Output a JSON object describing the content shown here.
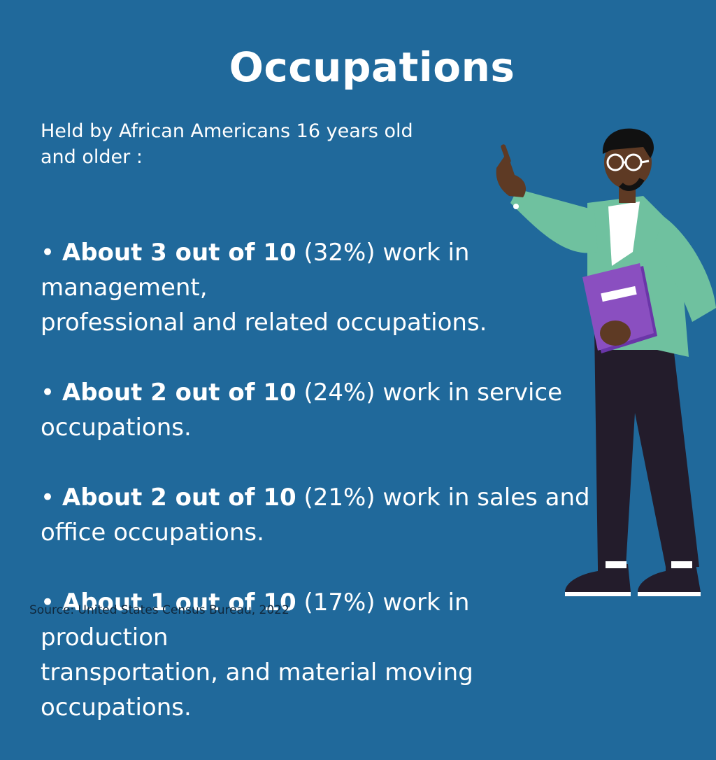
{
  "title": "Occupations",
  "subtitle": "Held by African Americans 16 years old\nand older :",
  "bullets": [
    {
      "prefix": "• ",
      "bold": "About 3 out of 10",
      "rest": " (32%) work in\nmanagement,\nprofessional and related occupations."
    },
    {
      "prefix": "• ",
      "bold": "About 2 out of 10",
      "rest": " (24%) work in service\noccupations."
    },
    {
      "prefix": "• ",
      "bold": "About 2 out of 10",
      "rest": " (21%) work in sales and\noffice occupations."
    },
    {
      "prefix": "• ",
      "bold": "About 1 out of 10",
      "rest": " (17%) work in production\ntransportation, and material moving\noccupations."
    }
  ],
  "source": "Source: United States Census Bureau, 2022",
  "colors": {
    "background": "#20699b",
    "jacket": "#6fc19f",
    "pants": "#231c2b",
    "book": "#8a4fc0",
    "skin": "#5e3a24"
  },
  "illustration": {
    "subject": "person-pointing-with-book",
    "icons": [
      "glasses-icon",
      "book-icon"
    ]
  }
}
